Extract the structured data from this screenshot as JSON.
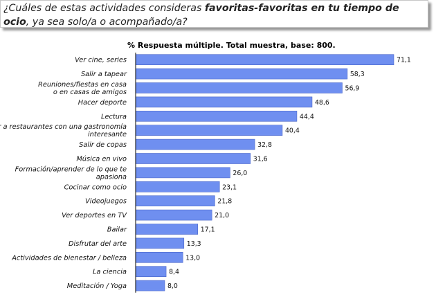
{
  "question": {
    "part1": "¿Cuáles de estas actividades consideras ",
    "bold": "favoritas-favoritas en tu tiempo de ocio",
    "part2": ", ya sea solo/a o acompañado/a?"
  },
  "colors": {
    "bar": "#6f8ff0",
    "bar_edge": "#4a66c9",
    "axis": "#000000"
  },
  "chart_data": {
    "type": "bar",
    "orientation": "horizontal",
    "title": "% Respuesta múltiple. Total muestra, base: 800.",
    "categories": [
      "Ver cine, series",
      "Salir a tapear",
      "Reuniones/fiestas en casa\no en casas de amigos",
      "Hacer deporte",
      "Lectura",
      "Ir a restaurantes con una gastronomía\ninteresante",
      "Salir de copas",
      "Música en vivo",
      "Formación/aprender de lo que te\napasiona",
      "Cocinar como ocio",
      "Videojuegos",
      "Ver deportes en TV",
      "Bailar",
      "Disfrutar del arte",
      "Actividades de bienestar / belleza",
      "La ciencia",
      "Meditación / Yoga"
    ],
    "values": [
      71.1,
      58.3,
      56.9,
      48.6,
      44.4,
      40.4,
      32.8,
      31.6,
      26.0,
      23.1,
      21.8,
      21.0,
      17.1,
      13.3,
      13.0,
      8.4,
      8.0
    ],
    "value_labels": [
      "71,1",
      "58,3",
      "56,9",
      "48,6",
      "44,4",
      "40,4",
      "32,8",
      "31,6",
      "26,0",
      "23,1",
      "21,8",
      "21,0",
      "17,1",
      "13,3",
      "13,0",
      "8,4",
      "8,0"
    ],
    "xlim": [
      0,
      71.1
    ],
    "grid": false,
    "legend": "none"
  }
}
